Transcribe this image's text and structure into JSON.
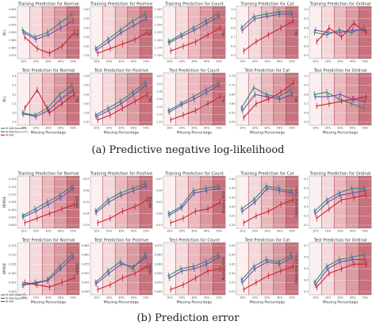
{
  "captions": {
    "a": "(a) Predictive negative log-likelihood",
    "b": "(b) Prediction error"
  },
  "legend": [
    {
      "label": "HI-VAE(Gaus+P)",
      "color": "#2e8b7a"
    },
    {
      "label": "HI-VAE(Gaus+P+)",
      "color": "#6a4fa3"
    },
    {
      "label": "HI-VAE",
      "color": "#cc1f2e"
    }
  ],
  "colors": {
    "teal": "#2e8b7a",
    "purple": "#6a4fa3",
    "red": "#cc1f2e",
    "bg_light": "#f7e6e6",
    "bg_dark": "#c9707a"
  },
  "chart_data": [
    {
      "type": "line",
      "title": "Training Prediction for Normal",
      "ylabel": "NLL",
      "xlabel": "",
      "categories": [
        "10%",
        "20%",
        "30%",
        "40%",
        "50%"
      ],
      "yticks": [
        "3.005",
        "3.000",
        "2.995",
        "2.990",
        "2.985",
        "2.980",
        "2.975"
      ],
      "ylim": [
        0,
        1
      ],
      "series": [
        {
          "color": "#2e8b7a",
          "values": [
            0.55,
            0.4,
            0.5,
            0.7,
            0.9
          ]
        },
        {
          "color": "#6a4fa3",
          "values": [
            0.5,
            0.35,
            0.45,
            0.6,
            0.75
          ]
        },
        {
          "color": "#cc1f2e",
          "values": [
            0.4,
            0.15,
            0.05,
            0.2,
            0.5
          ]
        }
      ]
    },
    {
      "type": "line",
      "title": "Training Prediction for Positive",
      "ylabel": "NLL",
      "xlabel": "",
      "categories": [
        "10%",
        "20%",
        "30%",
        "40%",
        "50%"
      ],
      "yticks": [
        "1.50",
        "1.45",
        "1.40",
        "1.35",
        "1.30",
        "1.25"
      ],
      "ylim": [
        0,
        1
      ],
      "series": [
        {
          "color": "#2e8b7a",
          "values": [
            0.15,
            0.35,
            0.55,
            0.75,
            0.9
          ]
        },
        {
          "color": "#6a4fa3",
          "values": [
            0.12,
            0.3,
            0.5,
            0.65,
            0.8
          ]
        },
        {
          "color": "#cc1f2e",
          "values": [
            0.05,
            0.15,
            0.25,
            0.35,
            0.5
          ]
        }
      ]
    },
    {
      "type": "line",
      "title": "Training Prediction for Count",
      "ylabel": "NLL",
      "xlabel": "",
      "categories": [
        "10%",
        "20%",
        "30%",
        "40%",
        "50%"
      ],
      "yticks": [
        "1.300",
        "1.275",
        "1.250",
        "1.225",
        "1.200",
        "1.175",
        "1.150"
      ],
      "ylim": [
        0,
        1
      ],
      "series": [
        {
          "color": "#2e8b7a",
          "values": [
            0.3,
            0.45,
            0.6,
            0.75,
            0.9
          ]
        },
        {
          "color": "#6a4fa3",
          "values": [
            0.28,
            0.42,
            0.55,
            0.7,
            0.85
          ]
        },
        {
          "color": "#cc1f2e",
          "values": [
            0.1,
            0.2,
            0.3,
            0.45,
            0.6
          ]
        }
      ]
    },
    {
      "type": "line",
      "title": "Training Prediction for Cat",
      "ylabel": "NLL",
      "xlabel": "",
      "categories": [
        "10%",
        "20%",
        "30%",
        "40%",
        "50%"
      ],
      "yticks": [
        "1.0",
        "0.9",
        "0.8",
        "0.7",
        "0.6",
        "0.5"
      ],
      "ylim": [
        0,
        1
      ],
      "series": [
        {
          "color": "#2e8b7a",
          "values": [
            0.6,
            0.85,
            0.9,
            0.95,
            0.95
          ]
        },
        {
          "color": "#6a4fa3",
          "values": [
            0.55,
            0.8,
            0.85,
            0.9,
            0.9
          ]
        },
        {
          "color": "#cc1f2e",
          "values": [
            0.1,
            0.3,
            0.45,
            0.6,
            0.75
          ]
        }
      ]
    },
    {
      "type": "line",
      "title": "Training Prediction for Ordinal",
      "ylabel": "NLL",
      "xlabel": "",
      "categories": [
        "10%",
        "20%",
        "30%",
        "40%",
        "50%"
      ],
      "yticks": [
        "1.0",
        "0.9",
        "0.8",
        "0.7",
        "0.6",
        "0.5"
      ],
      "ylim": [
        0,
        1
      ],
      "series": [
        {
          "color": "#2e8b7a",
          "values": [
            0.5,
            0.45,
            0.55,
            0.5,
            0.6
          ]
        },
        {
          "color": "#6a4fa3",
          "values": [
            0.55,
            0.5,
            0.5,
            0.55,
            0.55
          ]
        },
        {
          "color": "#cc1f2e",
          "values": [
            0.3,
            0.6,
            0.4,
            0.7,
            0.5
          ]
        }
      ]
    },
    {
      "type": "line",
      "title": "Test Prediction for Normal",
      "ylabel": "NLL",
      "xlabel": "Missing Percentage",
      "categories": [
        "10%",
        "20%",
        "30%",
        "40%",
        "50%"
      ],
      "yticks": [
        "3.4",
        "3.3",
        "3.2",
        "3.1",
        "3.0",
        "2.9"
      ],
      "ylim": [
        0,
        1
      ],
      "series": [
        {
          "color": "#2e8b7a",
          "values": [
            0.2,
            0.15,
            0.3,
            0.6,
            0.8
          ]
        },
        {
          "color": "#6a4fa3",
          "values": [
            0.18,
            0.12,
            0.25,
            0.5,
            0.7
          ]
        },
        {
          "color": "#cc1f2e",
          "values": [
            0.3,
            0.7,
            0.2,
            0.4,
            0.6
          ]
        }
      ]
    },
    {
      "type": "line",
      "title": "Test Prediction for Positive",
      "ylabel": "NLL",
      "xlabel": "Missing Percentage",
      "categories": [
        "10%",
        "20%",
        "30%",
        "40%",
        "50%"
      ],
      "yticks": [
        "1.55",
        "1.50",
        "1.45",
        "1.40",
        "1.35",
        "1.30"
      ],
      "ylim": [
        0,
        1
      ],
      "series": [
        {
          "color": "#2e8b7a",
          "values": [
            0.15,
            0.3,
            0.45,
            0.65,
            0.85
          ]
        },
        {
          "color": "#6a4fa3",
          "values": [
            0.12,
            0.25,
            0.4,
            0.6,
            0.8
          ]
        },
        {
          "color": "#cc1f2e",
          "values": [
            0.05,
            0.15,
            0.3,
            0.45,
            0.6
          ]
        }
      ]
    },
    {
      "type": "line",
      "title": "Test Prediction for Count",
      "ylabel": "NLL",
      "xlabel": "Missing Percentage",
      "categories": [
        "10%",
        "20%",
        "30%",
        "40%",
        "50%"
      ],
      "yticks": [
        "1.22",
        "1.20",
        "1.18",
        "1.16",
        "1.14",
        "1.12",
        "1.10"
      ],
      "ylim": [
        0,
        1
      ],
      "series": [
        {
          "color": "#2e8b7a",
          "values": [
            0.25,
            0.4,
            0.55,
            0.7,
            0.85
          ]
        },
        {
          "color": "#6a4fa3",
          "values": [
            0.22,
            0.38,
            0.5,
            0.65,
            0.8
          ]
        },
        {
          "color": "#cc1f2e",
          "values": [
            0.05,
            0.15,
            0.25,
            0.4,
            0.55
          ]
        }
      ]
    },
    {
      "type": "line",
      "title": "Test Prediction for Cat",
      "ylabel": "NLL",
      "xlabel": "Missing Percentage",
      "categories": [
        "10%",
        "20%",
        "30%",
        "40%",
        "50%"
      ],
      "yticks": [
        "0.75",
        "0.70",
        "0.65",
        "0.60",
        "0.55",
        "0.50"
      ],
      "ylim": [
        0,
        1
      ],
      "series": [
        {
          "color": "#2e8b7a",
          "values": [
            0.3,
            0.75,
            0.6,
            0.55,
            0.7
          ]
        },
        {
          "color": "#6a4fa3",
          "values": [
            0.25,
            0.6,
            0.55,
            0.5,
            0.6
          ]
        },
        {
          "color": "#cc1f2e",
          "values": [
            0.1,
            0.4,
            0.5,
            0.65,
            0.85
          ]
        }
      ]
    },
    {
      "type": "line",
      "title": "Test Prediction for Ordinal",
      "ylabel": "NLL",
      "xlabel": "Missing Percentage",
      "categories": [
        "10%",
        "20%",
        "30%",
        "40%",
        "50%"
      ],
      "yticks": [
        "1.0",
        "0.9",
        "0.8",
        "0.7",
        "0.6",
        "0.5"
      ],
      "ylim": [
        0,
        1
      ],
      "series": [
        {
          "color": "#2e8b7a",
          "values": [
            0.6,
            0.65,
            0.5,
            0.4,
            0.3
          ]
        },
        {
          "color": "#6a4fa3",
          "values": [
            0.55,
            0.55,
            0.6,
            0.5,
            0.45
          ]
        },
        {
          "color": "#cc1f2e",
          "values": [
            0.35,
            0.4,
            0.45,
            0.5,
            0.55
          ]
        }
      ]
    },
    {
      "type": "line",
      "title": "Training Prediction for Normal",
      "ylabel": "NRMSE",
      "xlabel": "",
      "categories": [
        "10%",
        "20%",
        "30%",
        "40%",
        "50%"
      ],
      "yticks": [
        "0.120",
        "0.115",
        "0.110",
        "0.105",
        "0.100",
        "0.095",
        "0.090"
      ],
      "ylim": [
        0,
        1
      ],
      "series": [
        {
          "color": "#2e8b7a",
          "values": [
            0.2,
            0.35,
            0.5,
            0.65,
            0.85
          ]
        },
        {
          "color": "#6a4fa3",
          "values": [
            0.18,
            0.3,
            0.45,
            0.6,
            0.8
          ]
        },
        {
          "color": "#cc1f2e",
          "values": [
            0.05,
            0.15,
            0.25,
            0.35,
            0.45
          ]
        }
      ]
    },
    {
      "type": "line",
      "title": "Training Prediction for Positive",
      "ylabel": "NRMSE",
      "xlabel": "",
      "categories": [
        "10%",
        "20%",
        "30%",
        "40%",
        "50%"
      ],
      "yticks": [
        "0.07",
        "0.06",
        "0.05",
        "0.04",
        "0.03"
      ],
      "ylim": [
        0,
        1
      ],
      "series": [
        {
          "color": "#2e8b7a",
          "values": [
            0.3,
            0.55,
            0.7,
            0.8,
            0.9
          ]
        },
        {
          "color": "#6a4fa3",
          "values": [
            0.28,
            0.5,
            0.65,
            0.75,
            0.85
          ]
        },
        {
          "color": "#cc1f2e",
          "values": [
            0.05,
            0.15,
            0.3,
            0.4,
            0.55
          ]
        }
      ]
    },
    {
      "type": "line",
      "title": "Training Prediction for Count",
      "ylabel": "NRMSE",
      "xlabel": "",
      "categories": [
        "10%",
        "20%",
        "30%",
        "40%",
        "50%"
      ],
      "yticks": [
        "0.07",
        "0.06",
        "0.05",
        "0.04",
        "0.03"
      ],
      "ylim": [
        0,
        1
      ],
      "series": [
        {
          "color": "#2e8b7a",
          "values": [
            0.25,
            0.4,
            0.75,
            0.8,
            0.85
          ]
        },
        {
          "color": "#6a4fa3",
          "values": [
            0.22,
            0.38,
            0.7,
            0.75,
            0.8
          ]
        },
        {
          "color": "#cc1f2e",
          "values": [
            0.05,
            0.15,
            0.3,
            0.35,
            0.5
          ]
        }
      ]
    },
    {
      "type": "line",
      "title": "Training Prediction for Cat",
      "ylabel": "Accuracy Error",
      "xlabel": "",
      "categories": [
        "10%",
        "20%",
        "30%",
        "40%",
        "50%"
      ],
      "yticks": [
        "0.45",
        "0.40",
        "0.35",
        "0.30",
        "0.25",
        "0.20"
      ],
      "ylim": [
        0,
        1
      ],
      "series": [
        {
          "color": "#2e8b7a",
          "values": [
            0.35,
            0.55,
            0.85,
            0.8,
            0.75
          ]
        },
        {
          "color": "#6a4fa3",
          "values": [
            0.3,
            0.5,
            0.8,
            0.75,
            0.7
          ]
        },
        {
          "color": "#cc1f2e",
          "values": [
            0.05,
            0.2,
            0.3,
            0.45,
            0.55
          ]
        }
      ]
    },
    {
      "type": "line",
      "title": "Training Prediction for Ordinal",
      "ylabel": "Displacement Error",
      "xlabel": "",
      "categories": [
        "10%",
        "20%",
        "30%",
        "40%",
        "50%"
      ],
      "yticks": [
        "0.7",
        "0.6",
        "0.5",
        "0.4",
        "0.3",
        "0.2"
      ],
      "ylim": [
        0,
        1
      ],
      "series": [
        {
          "color": "#2e8b7a",
          "values": [
            0.3,
            0.55,
            0.7,
            0.8,
            0.8
          ]
        },
        {
          "color": "#6a4fa3",
          "values": [
            0.25,
            0.5,
            0.65,
            0.7,
            0.75
          ]
        },
        {
          "color": "#cc1f2e",
          "values": [
            0.15,
            0.35,
            0.55,
            0.6,
            0.65
          ]
        }
      ]
    },
    {
      "type": "line",
      "title": "Test Prediction for Normal",
      "ylabel": "NRMSE",
      "xlabel": "Missing Percentage",
      "categories": [
        "10%",
        "20%",
        "30%",
        "40%",
        "50%"
      ],
      "yticks": [
        "0.115",
        "0.110",
        "0.105",
        "0.100",
        "0.095",
        "0.090"
      ],
      "ylim": [
        0,
        1
      ],
      "series": [
        {
          "color": "#2e8b7a",
          "values": [
            0.15,
            0.2,
            0.25,
            0.55,
            0.8
          ]
        },
        {
          "color": "#6a4fa3",
          "values": [
            0.15,
            0.18,
            0.25,
            0.5,
            0.75
          ]
        },
        {
          "color": "#cc1f2e",
          "values": [
            0.2,
            0.15,
            0.1,
            0.2,
            0.3
          ]
        }
      ]
    },
    {
      "type": "line",
      "title": "Test Prediction for Positive",
      "ylabel": "NRMSE",
      "xlabel": "Missing Percentage",
      "categories": [
        "10%",
        "20%",
        "30%",
        "40%",
        "50%"
      ],
      "yticks": [
        "0.065",
        "0.060",
        "0.055",
        "0.050",
        "0.045",
        "0.040"
      ],
      "ylim": [
        0,
        1
      ],
      "series": [
        {
          "color": "#2e8b7a",
          "values": [
            0.2,
            0.45,
            0.65,
            0.5,
            0.8
          ]
        },
        {
          "color": "#6a4fa3",
          "values": [
            0.18,
            0.4,
            0.6,
            0.55,
            0.75
          ]
        },
        {
          "color": "#cc1f2e",
          "values": [
            0.05,
            0.15,
            0.3,
            0.4,
            0.55
          ]
        }
      ]
    },
    {
      "type": "line",
      "title": "Test Prediction for Count",
      "ylabel": "NRMSE",
      "xlabel": "Missing Percentage",
      "categories": [
        "10%",
        "20%",
        "30%",
        "40%",
        "50%"
      ],
      "yticks": [
        "0.070",
        "0.065",
        "0.060",
        "0.055",
        "0.050",
        "0.045"
      ],
      "ylim": [
        0,
        1
      ],
      "series": [
        {
          "color": "#2e8b7a",
          "values": [
            0.35,
            0.5,
            0.55,
            0.65,
            0.8
          ]
        },
        {
          "color": "#6a4fa3",
          "values": [
            0.3,
            0.45,
            0.5,
            0.6,
            0.75
          ]
        },
        {
          "color": "#cc1f2e",
          "values": [
            0.05,
            0.15,
            0.3,
            0.45,
            0.5
          ]
        }
      ]
    },
    {
      "type": "line",
      "title": "Test Prediction for Cat",
      "ylabel": "Accuracy Error",
      "xlabel": "Missing Percentage",
      "categories": [
        "10%",
        "20%",
        "30%",
        "40%",
        "50%"
      ],
      "yticks": [
        "0.45",
        "0.40",
        "0.35",
        "0.30",
        "0.25",
        "0.20"
      ],
      "ylim": [
        0,
        1
      ],
      "series": [
        {
          "color": "#2e8b7a",
          "values": [
            0.25,
            0.55,
            0.7,
            0.65,
            0.8
          ]
        },
        {
          "color": "#6a4fa3",
          "values": [
            0.2,
            0.5,
            0.65,
            0.6,
            0.75
          ]
        },
        {
          "color": "#cc1f2e",
          "values": [
            0.05,
            0.2,
            0.35,
            0.45,
            0.55
          ]
        }
      ]
    },
    {
      "type": "line",
      "title": "Test Prediction for Ordinal",
      "ylabel": "Displacement Error",
      "xlabel": "Missing Percentage",
      "categories": [
        "10%",
        "20%",
        "30%",
        "40%",
        "50%"
      ],
      "yticks": [
        "0.7",
        "0.6",
        "0.5",
        "0.4",
        "0.3"
      ],
      "ylim": [
        0,
        1
      ],
      "series": [
        {
          "color": "#2e8b7a",
          "values": [
            0.2,
            0.55,
            0.7,
            0.75,
            0.8
          ]
        },
        {
          "color": "#6a4fa3",
          "values": [
            0.15,
            0.5,
            0.65,
            0.7,
            0.7
          ]
        },
        {
          "color": "#cc1f2e",
          "values": [
            0.1,
            0.4,
            0.5,
            0.6,
            0.6
          ]
        }
      ]
    }
  ]
}
